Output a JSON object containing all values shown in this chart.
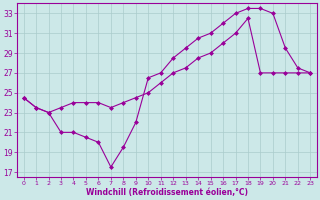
{
  "xlabel": "Windchill (Refroidissement éolien,°C)",
  "bg_color": "#cce8e8",
  "line_color": "#990099",
  "grid_color": "#aacccc",
  "xlim": [
    -0.5,
    23.5
  ],
  "ylim": [
    16.5,
    34
  ],
  "xticks": [
    0,
    1,
    2,
    3,
    4,
    5,
    6,
    7,
    8,
    9,
    10,
    11,
    12,
    13,
    14,
    15,
    16,
    17,
    18,
    19,
    20,
    21,
    22,
    23
  ],
  "yticks": [
    17,
    19,
    21,
    23,
    25,
    27,
    29,
    31,
    33
  ],
  "line1_x": [
    0,
    1,
    2,
    3,
    4,
    5,
    6,
    7,
    8,
    9,
    10,
    11,
    12,
    13,
    14,
    15,
    16,
    17,
    18,
    19,
    20,
    21,
    22,
    23
  ],
  "line1_y": [
    24.5,
    23.5,
    23.0,
    21.0,
    21.0,
    20.5,
    20.0,
    17.5,
    19.5,
    22.0,
    26.5,
    27.0,
    28.5,
    29.5,
    30.5,
    31.0,
    32.0,
    33.0,
    33.5,
    33.5,
    33.0,
    29.5,
    27.5,
    27.0
  ],
  "line2_x": [
    0,
    1,
    2,
    3,
    4,
    5,
    6,
    7,
    8,
    9,
    10,
    11,
    12,
    13,
    14,
    15,
    16,
    17,
    18,
    19,
    20,
    21,
    22,
    23
  ],
  "line2_y": [
    24.5,
    23.5,
    23.0,
    23.5,
    24.0,
    24.0,
    24.0,
    23.5,
    24.0,
    24.5,
    25.0,
    26.0,
    27.0,
    27.5,
    28.5,
    29.0,
    30.0,
    31.0,
    32.5,
    27.0,
    27.0,
    27.0,
    27.0,
    27.0
  ]
}
